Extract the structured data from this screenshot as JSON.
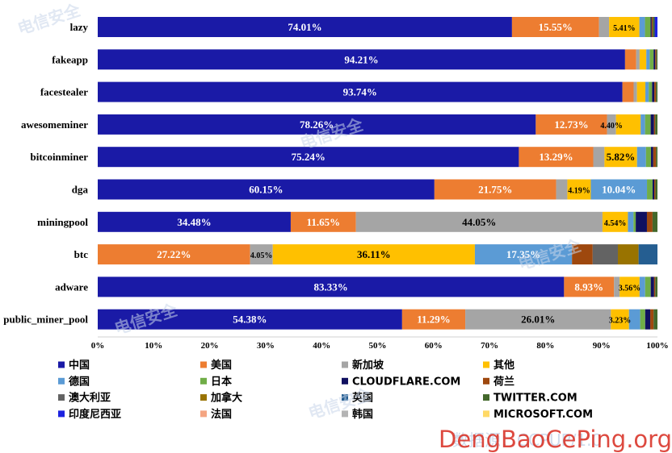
{
  "chart_data": {
    "type": "bar",
    "orientation": "horizontal",
    "stacked": "percent",
    "title": "",
    "xlabel": "",
    "ylabel": "",
    "xlim": [
      0,
      100
    ],
    "x_ticks": [
      "0%",
      "10%",
      "20%",
      "30%",
      "40%",
      "50%",
      "60%",
      "70%",
      "80%",
      "90%",
      "100%"
    ],
    "grid": false,
    "legend_position": "bottom",
    "categories": [
      "lazy",
      "fakeapp",
      "facestealer",
      "awesomeminer",
      "bitcoinminer",
      "dga",
      "miningpool",
      "btc",
      "adware",
      "public_miner_pool"
    ],
    "series": [
      {
        "name": "中国",
        "color": "#1a1aa6",
        "values": [
          74.01,
          94.21,
          93.74,
          78.26,
          75.24,
          60.15,
          34.48,
          0,
          83.33,
          54.38
        ]
      },
      {
        "name": "美国",
        "color": "#ed7d31",
        "values": [
          15.55,
          2.0,
          2.0,
          12.73,
          13.29,
          21.75,
          11.65,
          27.22,
          8.93,
          11.29
        ]
      },
      {
        "name": "新加坡",
        "color": "#a5a5a5",
        "values": [
          1.8,
          0.6,
          0.6,
          1.6,
          2.0,
          2.0,
          44.05,
          4.05,
          1.0,
          26.01
        ]
      },
      {
        "name": "其他",
        "color": "#ffc000",
        "values": [
          5.41,
          1.2,
          1.5,
          4.4,
          5.82,
          4.19,
          4.54,
          36.11,
          3.56,
          3.23
        ]
      },
      {
        "name": "德国",
        "color": "#5b9bd5",
        "values": [
          1.0,
          0.6,
          0.6,
          0.8,
          1.6,
          10.04,
          1.0,
          17.35,
          1.0,
          2.0
        ]
      },
      {
        "name": "日本",
        "color": "#70ad47",
        "values": [
          1.0,
          0.7,
          0.6,
          1.0,
          0.9,
          1.0,
          0.4,
          0,
          1.0,
          0.9
        ]
      },
      {
        "name": "CLOUDFLARE.COM",
        "color": "#101060",
        "values": [
          0.2,
          0.3,
          0.4,
          0.6,
          0.4,
          0.3,
          2.0,
          0,
          0.6,
          0.9
        ]
      },
      {
        "name": "荷兰",
        "color": "#9e480e",
        "values": [
          0.2,
          0.2,
          0.3,
          0.2,
          0.5,
          0.2,
          1.0,
          3.7,
          0.2,
          0.6
        ]
      },
      {
        "name": "澳大利亚",
        "color": "#636363",
        "values": [
          0,
          0,
          0,
          0,
          0,
          0,
          0,
          4.5,
          0,
          0
        ]
      },
      {
        "name": "加拿大",
        "color": "#997300",
        "values": [
          0,
          0,
          0,
          0,
          0,
          0,
          0,
          3.7,
          0,
          0
        ]
      },
      {
        "name": "英国",
        "color": "#255e91",
        "values": [
          0,
          0,
          0,
          0,
          0,
          0,
          0,
          3.37,
          0,
          0
        ]
      },
      {
        "name": "TWITTER.COM",
        "color": "#43682b",
        "values": [
          0.33,
          0.19,
          0.26,
          0.41,
          0.25,
          0.37,
          0.88,
          0,
          0.4,
          0.69
        ]
      },
      {
        "name": "印度尼西亚",
        "color": "#1c22e0",
        "values": [
          0.5,
          0,
          0,
          0,
          0,
          0,
          0,
          0,
          0,
          0
        ]
      },
      {
        "name": "法国",
        "color": "#f4a582",
        "values": [
          0,
          0,
          0,
          0,
          0,
          0,
          0,
          0,
          0,
          0
        ]
      },
      {
        "name": "韩国",
        "color": "#b4b4b4",
        "values": [
          0,
          0,
          0,
          0,
          0,
          0,
          0,
          0,
          0,
          0
        ]
      },
      {
        "name": "MICROSOFT.COM",
        "color": "#ffd966",
        "values": [
          0,
          0,
          0,
          0,
          0,
          0,
          0,
          0,
          0,
          0
        ]
      }
    ],
    "data_labels": [
      [
        "74.01%",
        "15.55%",
        "",
        "5.41%"
      ],
      [
        "94.21%"
      ],
      [
        "93.74%"
      ],
      [
        "78.26%",
        "12.73%",
        "4.40%"
      ],
      [
        "75.24%",
        "13.29%",
        "",
        "5.82%"
      ],
      [
        "60.15%",
        "21.75%",
        "",
        "4.19%",
        "10.04%"
      ],
      [
        "34.48%",
        "11.65%",
        "44.05%",
        "4.54%"
      ],
      [
        "",
        "27.22%",
        "4.05%",
        "36.11%",
        "17.35%"
      ],
      [
        "83.33%",
        "8.93%",
        "",
        "3.56%"
      ],
      [
        "54.38%",
        "11.29%",
        "26.01%",
        "3.23%"
      ]
    ]
  },
  "watermarks": {
    "site": "DengBaoCePing.org",
    "brand": "电信安全",
    "footer": "数据源：CCPUP/1.0"
  }
}
